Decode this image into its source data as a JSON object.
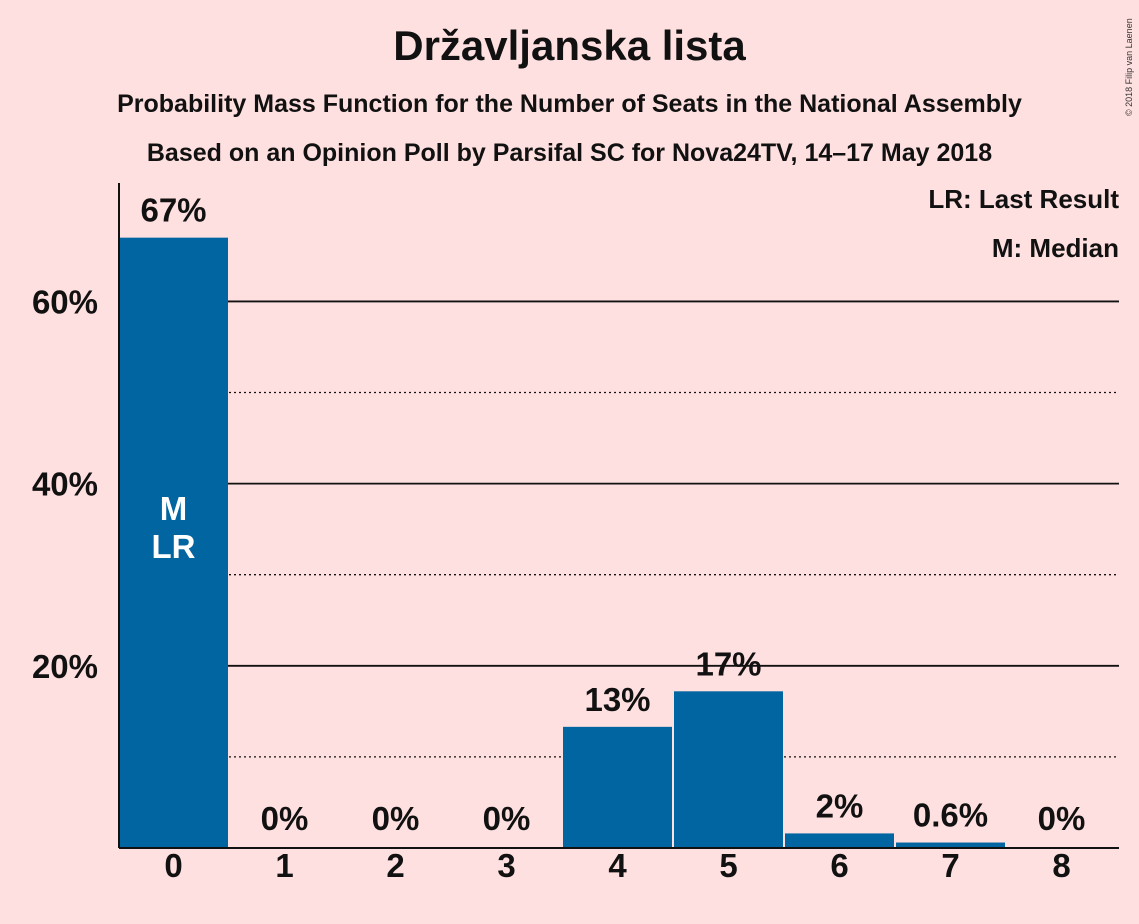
{
  "chart_data": {
    "type": "bar",
    "title": "Državljanska lista",
    "subtitle": "Probability Mass Function for the Number of Seats in the National Assembly",
    "subtitle2": "Based on an Opinion Poll by Parsifal SC for Nova24TV, 14–17 May 2018",
    "categories": [
      "0",
      "1",
      "2",
      "3",
      "4",
      "5",
      "6",
      "7",
      "8"
    ],
    "values": [
      67,
      0,
      0,
      0,
      13.3,
      17.2,
      1.6,
      0.6,
      0
    ],
    "data_labels": [
      "67%",
      "0%",
      "0%",
      "0%",
      "13%",
      "17%",
      "2%",
      "0.6%",
      "0%"
    ],
    "ylim": [
      0,
      73
    ],
    "yticks": [
      20,
      40,
      60
    ],
    "ytick_labels": [
      "20%",
      "40%",
      "60%"
    ],
    "minor_gridlines": [
      10,
      30,
      50
    ],
    "bar_annotations": {
      "index": 0,
      "lines": [
        "M",
        "LR"
      ]
    },
    "legend": [
      "LR: Last Result",
      "M: Median"
    ],
    "legend_position": "top-right",
    "bar_color": "#0065A0",
    "background_color": "#FFE0E0",
    "copyright": "© 2018 Filip van Laenen"
  }
}
